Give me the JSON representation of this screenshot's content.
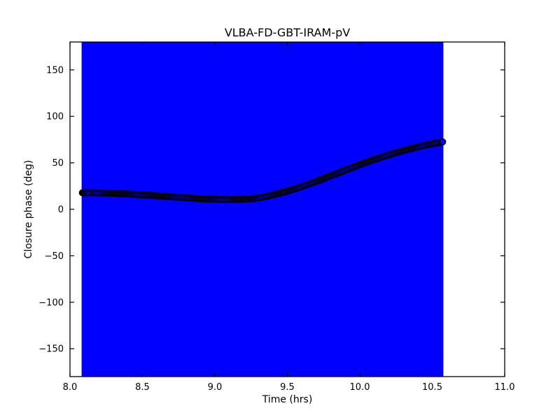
{
  "figure": {
    "background": "#ffffff",
    "axes_color": "#000000"
  },
  "chart_data": {
    "type": "line",
    "subtype": "errorbar-with-markers",
    "title": "VLBA-FD-GBT-IRAM-pV",
    "xlabel": "Time (hrs)",
    "ylabel": "Closure phase (deg)",
    "xlim": [
      8.0,
      11.0
    ],
    "ylim": [
      -180,
      180
    ],
    "grid": false,
    "legend": "none",
    "xticks": {
      "values": [
        8.0,
        8.5,
        9.0,
        9.5,
        10.0,
        10.5,
        11.0
      ],
      "labels": [
        "8.0",
        "8.5",
        "9.0",
        "9.5",
        "10.0",
        "10.5",
        "11.0"
      ]
    },
    "yticks": {
      "values": [
        -150,
        -100,
        -50,
        0,
        50,
        100,
        150
      ],
      "labels": [
        "−150",
        "−100",
        "−50",
        "0",
        "50",
        "100",
        "150"
      ]
    },
    "error_band": {
      "t_start": 8.085,
      "t_end": 10.572,
      "y_min": -180,
      "y_max": 180,
      "color": "#0000ff",
      "note": "error bars span the full y-range and overlap into a solid blue region"
    },
    "series": [
      {
        "name": "closure phase",
        "marker": "o",
        "marker_fill": "#0000ff",
        "marker_edge": "#000000",
        "points": [
          [
            8.085,
            17.8
          ],
          [
            8.2,
            17.6
          ],
          [
            8.3,
            17.2
          ],
          [
            8.4,
            16.5
          ],
          [
            8.5,
            15.6
          ],
          [
            8.6,
            14.6
          ],
          [
            8.7,
            13.5
          ],
          [
            8.8,
            12.4
          ],
          [
            8.9,
            11.4
          ],
          [
            9.0,
            10.8
          ],
          [
            9.1,
            10.5
          ],
          [
            9.2,
            10.9
          ],
          [
            9.3,
            12.2
          ],
          [
            9.4,
            15.5
          ],
          [
            9.5,
            19.5
          ],
          [
            9.6,
            24.5
          ],
          [
            9.7,
            30.0
          ],
          [
            9.8,
            36.0
          ],
          [
            9.9,
            42.0
          ],
          [
            10.0,
            48.0
          ],
          [
            10.1,
            53.5
          ],
          [
            10.2,
            58.5
          ],
          [
            10.3,
            63.0
          ],
          [
            10.4,
            67.0
          ],
          [
            10.5,
            70.5
          ],
          [
            10.572,
            72.5
          ]
        ]
      }
    ]
  }
}
